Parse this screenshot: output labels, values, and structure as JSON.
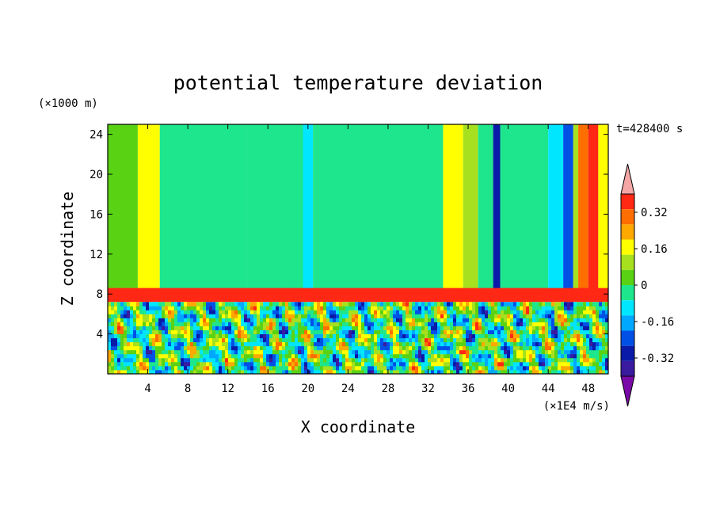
{
  "chart_data": {
    "type": "heatmap",
    "title": "potential temperature deviation",
    "xlabel": "X coordinate",
    "ylabel": "Z coordinate",
    "x_unit": "(×1E4 m/s)",
    "y_unit": "(×1000 m)",
    "time_label": "t=428400 s",
    "xlim": [
      0,
      50
    ],
    "ylim": [
      0,
      25
    ],
    "x_ticks": [
      4,
      8,
      12,
      16,
      20,
      24,
      28,
      32,
      36,
      40,
      44,
      48
    ],
    "x_tick_labels": [
      "4",
      "8",
      "12",
      "16",
      "20",
      "24",
      "28",
      "32",
      "36",
      "40",
      "44",
      "48"
    ],
    "y_ticks": [
      4,
      8,
      12,
      16,
      20,
      24
    ],
    "y_tick_labels": [
      "4",
      "8",
      "12",
      "16",
      "20",
      "24"
    ],
    "colorbar": {
      "levels": [
        -0.48,
        -0.4,
        -0.32,
        -0.24,
        -0.16,
        -0.08,
        0,
        0.08,
        0.16,
        0.24,
        0.32,
        0.4
      ],
      "colors": [
        "#7a0aa8",
        "#3a1a9e",
        "#0a1aa8",
        "#0050e6",
        "#00a8ff",
        "#00e6ff",
        "#1ee68c",
        "#5ad214",
        "#a6e01e",
        "#ffff00",
        "#ffa800",
        "#ff6e00",
        "#ff2814",
        "#f4a6a6"
      ],
      "tick_values": [
        0.32,
        0.16,
        0,
        -0.16,
        -0.32
      ],
      "tick_labels": [
        "0.32",
        "0.16",
        "0",
        "-0.16",
        "-0.32"
      ]
    },
    "upper_layer": {
      "z_range": [
        8.5,
        25
      ],
      "bands": [
        {
          "x": [
            0,
            3
          ],
          "value": 0.02
        },
        {
          "x": [
            3,
            5.2
          ],
          "value": 0.19
        },
        {
          "x": [
            5.2,
            14
          ],
          "value": -0.05
        },
        {
          "x": [
            14,
            18
          ],
          "value": -0.03
        },
        {
          "x": [
            18,
            19.5
          ],
          "value": -0.05
        },
        {
          "x": [
            19.5,
            20.5
          ],
          "value": -0.1
        },
        {
          "x": [
            20.5,
            33.5
          ],
          "value": -0.05
        },
        {
          "x": [
            33.5,
            35.5
          ],
          "value": 0.16
        },
        {
          "x": [
            35.5,
            37
          ],
          "value": 0.08
        },
        {
          "x": [
            37,
            38.5
          ],
          "value": -0.05
        },
        {
          "x": [
            38.5,
            39.2
          ],
          "value": -0.4
        },
        {
          "x": [
            39.2,
            44
          ],
          "value": -0.05
        },
        {
          "x": [
            44,
            45.5
          ],
          "value": -0.1
        },
        {
          "x": [
            45.5,
            46.5
          ],
          "value": -0.3
        },
        {
          "x": [
            46.5,
            47
          ],
          "value": 0.1
        },
        {
          "x": [
            47,
            48
          ],
          "value": 0.32
        },
        {
          "x": [
            48,
            49
          ],
          "value": 0.42
        },
        {
          "x": [
            49,
            50
          ],
          "value": 0.2
        }
      ]
    },
    "inversion_layer": {
      "z_range": [
        7.2,
        8.6
      ],
      "value": 0.45
    },
    "lower_layer": {
      "z_range": [
        0,
        7.2
      ],
      "value_range": [
        -0.48,
        0.45
      ]
    }
  }
}
